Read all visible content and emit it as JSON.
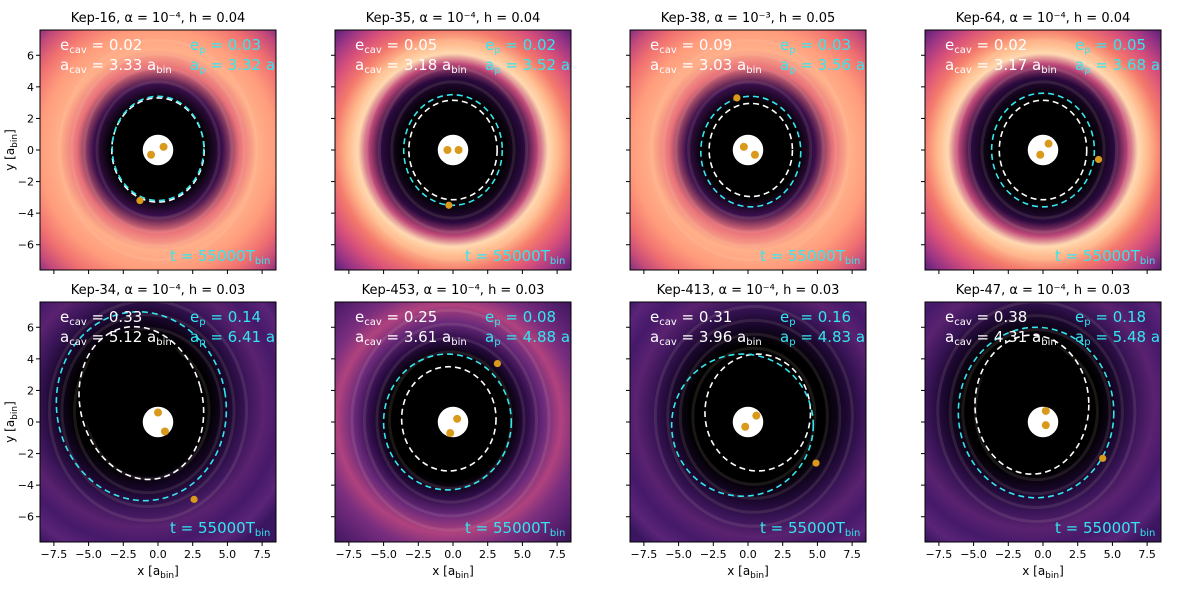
{
  "figure": {
    "time_label": "t = 55000T",
    "time_sub": "bin",
    "xlabel": "x [a",
    "ylabel": "y [a",
    "label_sub": "bin",
    "label_close": "]",
    "xticks": [
      "−7.5",
      "−5.0",
      "−2.5",
      "0.0",
      "2.5",
      "5.0",
      "7.5"
    ],
    "yticks": [
      "6",
      "4",
      "2",
      "0",
      "−2",
      "−4",
      "−6"
    ],
    "colors": {
      "cavity": "#000000",
      "annotation_white": "#ffffff",
      "annotation_cyan": "#33e6f0",
      "star": "#d99a1c"
    }
  },
  "panels": [
    {
      "title": "Kep-16, α = 10⁻⁴, h = 0.04",
      "e_cav": "0.02",
      "a_cav": "3.33",
      "e_p": "0.03",
      "a_p": "3.32"
    },
    {
      "title": "Kep-35, α = 10⁻⁴, h = 0.04",
      "e_cav": "0.05",
      "a_cav": "3.18",
      "e_p": "0.02",
      "a_p": "3.52"
    },
    {
      "title": "Kep-38, α = 10⁻³, h = 0.05",
      "e_cav": "0.09",
      "a_cav": "3.03",
      "e_p": "0.03",
      "a_p": "3.56"
    },
    {
      "title": "Kep-64, α = 10⁻⁴, h = 0.04",
      "e_cav": "0.02",
      "a_cav": "3.17",
      "e_p": "0.05",
      "a_p": "3.68"
    },
    {
      "title": "Kep-34, α = 10⁻⁴, h = 0.03",
      "e_cav": "0.33",
      "a_cav": "5.12",
      "e_p": "0.14",
      "a_p": "6.41"
    },
    {
      "title": "Kep-453, α = 10⁻⁴, h = 0.03",
      "e_cav": "0.25",
      "a_cav": "3.61",
      "e_p": "0.08",
      "a_p": "4.88"
    },
    {
      "title": "Kep-413, α = 10⁻⁴, h = 0.03",
      "e_cav": "0.31",
      "a_cav": "3.96",
      "e_p": "0.16",
      "a_p": "4.83"
    },
    {
      "title": "Kep-47, α = 10⁻⁴, h = 0.03",
      "e_cav": "0.38",
      "a_cav": "4.31",
      "e_p": "0.18",
      "a_p": "5.48"
    }
  ]
}
